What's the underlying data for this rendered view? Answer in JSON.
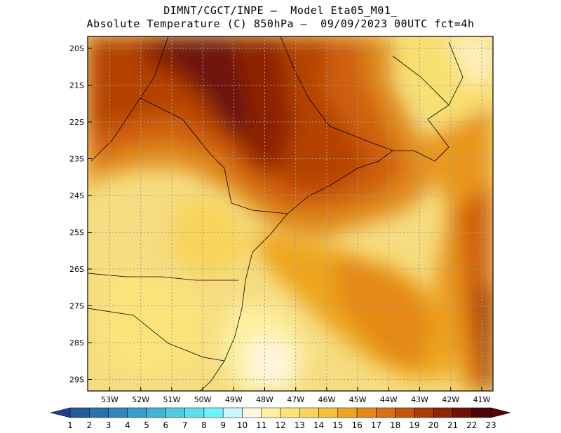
{
  "header": {
    "title_line1": "DIMNT/CGCT/INPE –  Model Eta05_M01_",
    "title_line2": "Absolute Temperature (C) 850hPa –  09/09/2023 00UTC fct=4h"
  },
  "map": {
    "lon_range": [
      -53.9,
      -40.3
    ],
    "lat_range": [
      -29.5,
      -19.7
    ],
    "lon_ticks": [
      "53W",
      "52W",
      "51W",
      "50W",
      "49W",
      "48W",
      "47W",
      "46W",
      "45W",
      "44W",
      "43W",
      "42W",
      "41W"
    ],
    "lat_ticks": [
      "20S",
      "21S",
      "22S",
      "23S",
      "24S",
      "25S",
      "26S",
      "27S",
      "28S",
      "29S"
    ],
    "grid": "dotted",
    "gridline_color": "#a0a0a0",
    "coastline_color": "#000000"
  },
  "colorbar": {
    "labels": [
      "1",
      "2",
      "3",
      "4",
      "5",
      "6",
      "7",
      "8",
      "9",
      "10",
      "11",
      "12",
      "13",
      "14",
      "15",
      "16",
      "17",
      "18",
      "19",
      "20",
      "21",
      "22",
      "23"
    ],
    "colors": [
      "#1f3f94",
      "#25589e",
      "#2c6fae",
      "#3486bb",
      "#3a9cc8",
      "#42b4d4",
      "#4fcbe0",
      "#5ee0ec",
      "#6ef4f8",
      "#ccf4fc",
      "#fff6e0",
      "#fdf0a0",
      "#fbe37a",
      "#f8d45a",
      "#f4bf3c",
      "#eea51e",
      "#e58819",
      "#d96e12",
      "#c6540a",
      "#ab3a06",
      "#8e2406",
      "#6e1208",
      "#4c0508"
    ]
  }
}
